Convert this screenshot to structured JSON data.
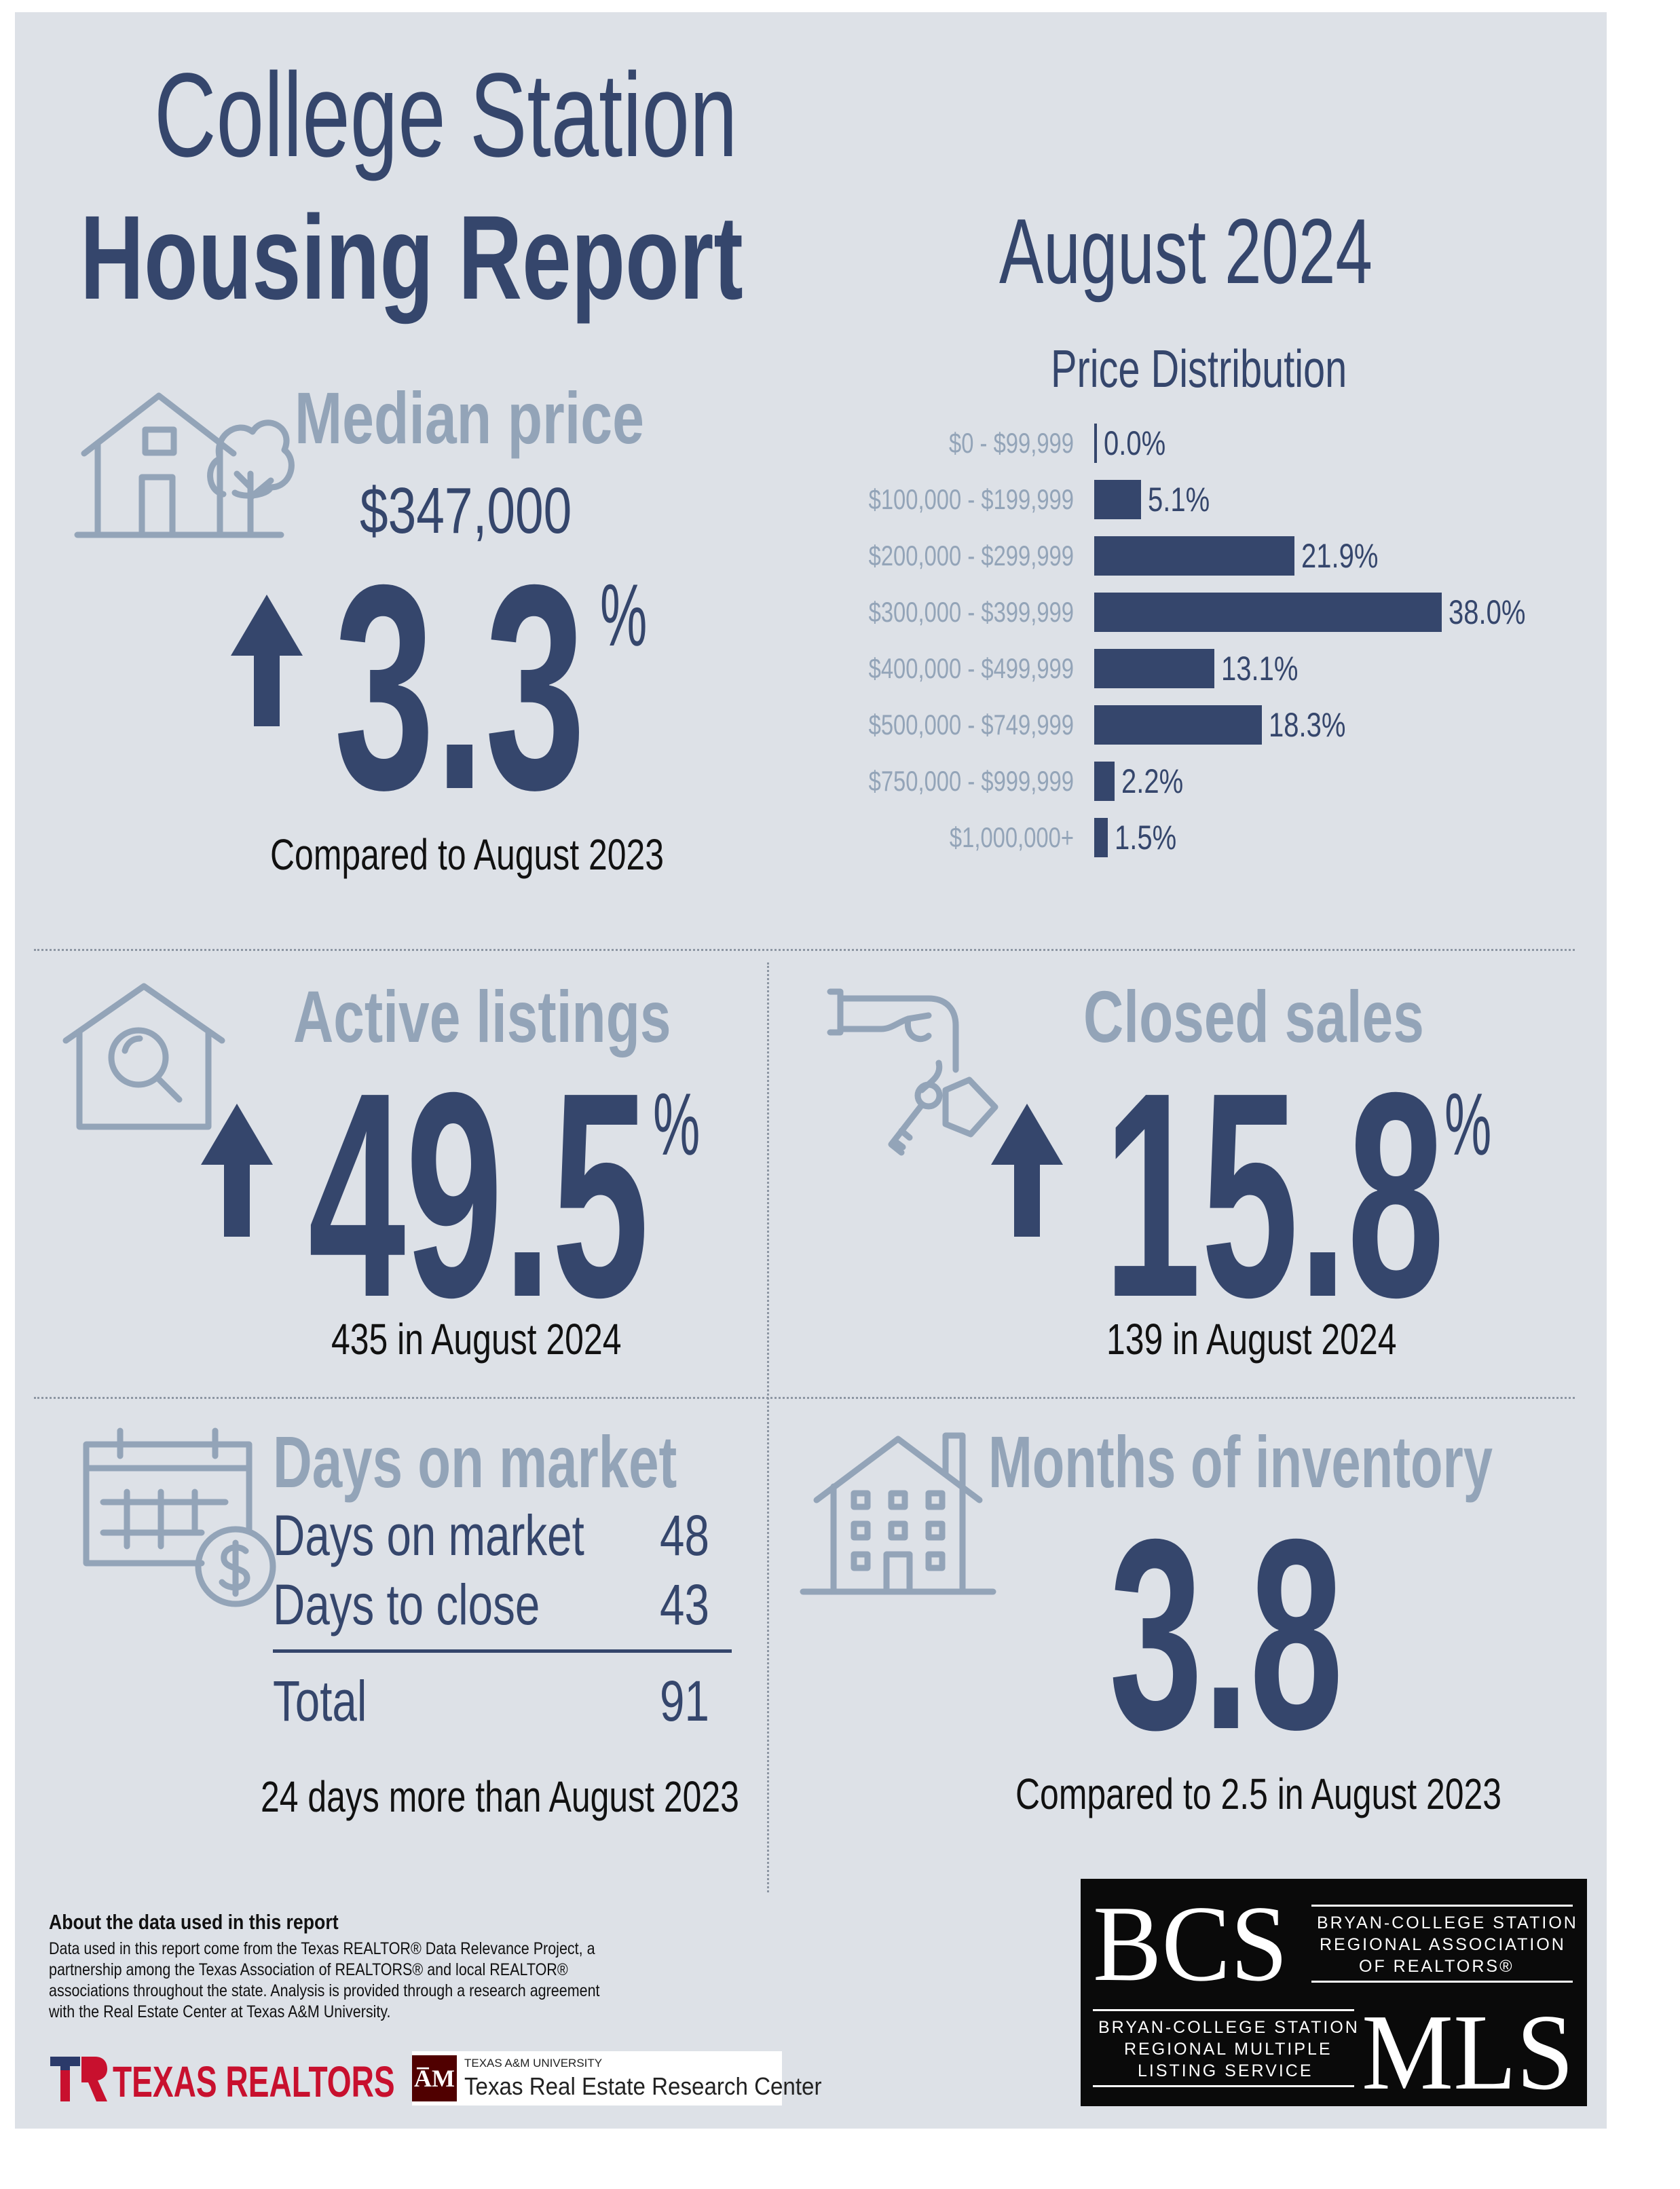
{
  "title": {
    "line1": "College Station",
    "line2": "Housing Report"
  },
  "period": "August 2024",
  "median_price": {
    "heading": "Median price",
    "value": "$347,000",
    "change": "3.3",
    "unit": "%",
    "direction": "up",
    "note": "Compared to August 2023"
  },
  "price_distribution": {
    "heading": "Price Distribution",
    "rows": [
      {
        "label": "$0 - $99,999",
        "pct": 0.0,
        "display": "0.0%"
      },
      {
        "label": "$100,000 - $199,999",
        "pct": 5.1,
        "display": "5.1%"
      },
      {
        "label": "$200,000 - $299,999",
        "pct": 21.9,
        "display": "21.9%"
      },
      {
        "label": "$300,000 - $399,999",
        "pct": 38.0,
        "display": "38.0%"
      },
      {
        "label": "$400,000 - $499,999",
        "pct": 13.1,
        "display": "13.1%"
      },
      {
        "label": "$500,000 - $749,999",
        "pct": 18.3,
        "display": "18.3%"
      },
      {
        "label": "$750,000 - $999,999",
        "pct": 2.2,
        "display": "2.2%"
      },
      {
        "label": "$1,000,000+",
        "pct": 1.5,
        "display": "1.5%"
      }
    ]
  },
  "chart_data": {
    "type": "bar",
    "title": "Price Distribution",
    "orientation": "horizontal",
    "categories": [
      "$0 - $99,999",
      "$100,000 - $199,999",
      "$200,000 - $299,999",
      "$300,000 - $399,999",
      "$400,000 - $499,999",
      "$500,000 - $749,999",
      "$750,000 - $999,999",
      "$1,000,000+"
    ],
    "values": [
      0.0,
      5.1,
      21.9,
      38.0,
      13.1,
      18.3,
      2.2,
      1.5
    ],
    "data_labels": [
      "0.0%",
      "5.1%",
      "21.9%",
      "38.0%",
      "13.1%",
      "18.3%",
      "2.2%",
      "1.5%"
    ],
    "xlabel": "",
    "ylabel": "",
    "grid": false
  },
  "active_listings": {
    "heading": "Active listings",
    "change": "49.5",
    "unit": "%",
    "direction": "up",
    "note": "435 in August 2024"
  },
  "closed_sales": {
    "heading": "Closed sales",
    "change": "15.8",
    "unit": "%",
    "direction": "up",
    "note": "139 in August 2024"
  },
  "days_on_market": {
    "heading": "Days on market",
    "rows": [
      {
        "label": "Days on market",
        "value": "48"
      },
      {
        "label": "Days to close",
        "value": "43"
      }
    ],
    "total_label": "Total",
    "total_value": "91",
    "note": "24 days more than August 2023"
  },
  "months_inventory": {
    "heading": "Months of inventory",
    "value": "3.8",
    "note": "Compared to 2.5 in August 2023"
  },
  "footer": {
    "about_title": "About the data used in this report",
    "about_lines": [
      "Data used in this report come from the Texas REALTOR® Data Relevance Project, a",
      "partnership among the Texas Association of REALTORS® and local REALTOR®",
      "associations throughout the state. Analysis is provided through a research agreement",
      "with the Real Estate Center at Texas A&M University."
    ],
    "texas_realtors": "TEXAS REALTORS",
    "tamu_small": "TEXAS A&M UNIVERSITY",
    "tamu_center": "Texas Real Estate Research Center"
  },
  "bcs_logo": {
    "bcs": "BCS",
    "assoc_lines": [
      "BRYAN-COLLEGE STATION",
      "REGIONAL ASSOCIATION",
      "OF REALTORS®"
    ],
    "mls_lines": [
      "BRYAN-COLLEGE STATION",
      "REGIONAL MULTIPLE",
      "LISTING SERVICE"
    ],
    "mls": "MLS"
  },
  "colors": {
    "navy": "#35466c",
    "slate": "#93a4b8",
    "background": "#dde1e7"
  },
  "icons": [
    "house-tree-icon",
    "up-arrow-icon",
    "house-search-icon",
    "hand-key-icon",
    "calendar-dollar-icon",
    "apartment-building-icon"
  ]
}
